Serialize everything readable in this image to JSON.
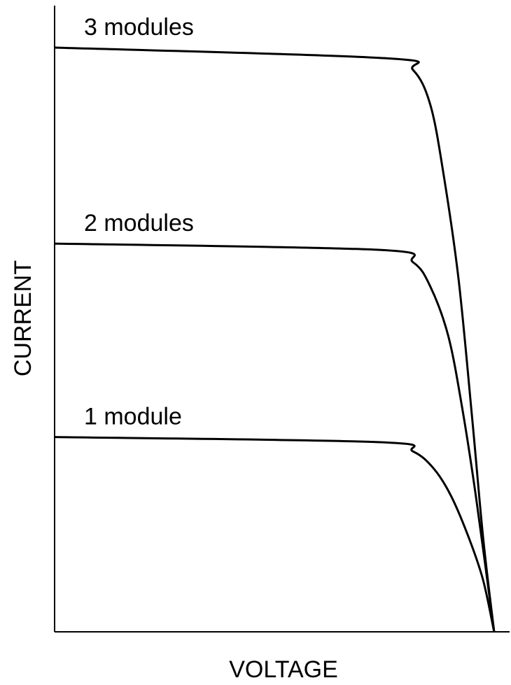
{
  "chart_data": {
    "type": "line",
    "xlabel": "VOLTAGE",
    "ylabel": "CURRENT",
    "xlim": [
      0,
      100
    ],
    "ylim": [
      0,
      100
    ],
    "color": "#000000",
    "series": [
      {
        "name": "3 modules",
        "color": "#000000",
        "x": [
          0,
          72.6,
          78.8,
          82.6,
          85.5,
          88.8,
          91.8,
          94.2,
          96.6
        ],
        "values": [
          93.3,
          91.6,
          89.7,
          84.1,
          73,
          56.2,
          33.9,
          14.9,
          0
        ]
      },
      {
        "name": "2 modules",
        "color": "#000000",
        "x": [
          0,
          71.1,
          78.8,
          82.6,
          86.5,
          89.5,
          92.6,
          96.6
        ],
        "values": [
          62,
          61,
          59,
          55.1,
          47.3,
          36.1,
          21.6,
          0
        ]
      },
      {
        "name": "1 module",
        "color": "#000000",
        "x": [
          0,
          71.1,
          78.8,
          83.4,
          87.2,
          91.1,
          94.2,
          96.6
        ],
        "values": [
          31.1,
          30.3,
          28.8,
          26,
          21.6,
          14.9,
          8.2,
          0
        ]
      }
    ]
  }
}
